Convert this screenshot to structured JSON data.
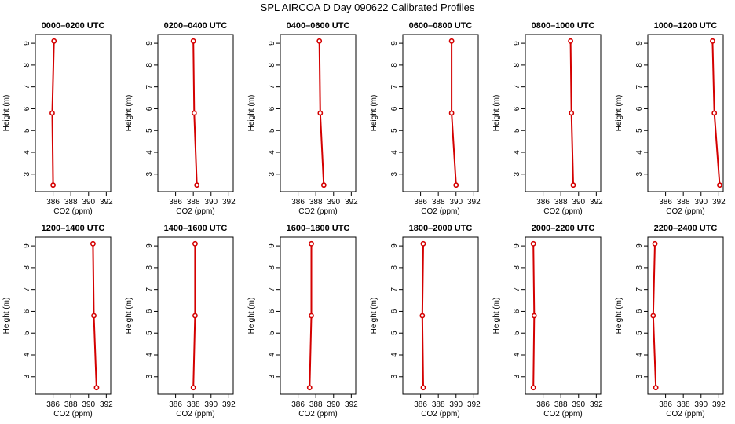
{
  "title": "SPL AIRCOA D  Day 090622  Calibrated Profiles",
  "colors": {
    "series": "#d40000",
    "axis": "#000000",
    "background": "#ffffff"
  },
  "chart_data": [
    {
      "type": "line",
      "title": "0000–0200 UTC",
      "xlabel": "CO2 (ppm)",
      "ylabel": "Height (m)",
      "xlim": [
        384,
        392.5
      ],
      "ylim": [
        2.2,
        9.4
      ],
      "xticks": [
        386,
        388,
        390,
        392
      ],
      "yticks": [
        3,
        4,
        5,
        6,
        7,
        8,
        9
      ],
      "x": [
        386.0,
        385.9,
        386.1
      ],
      "y": [
        2.5,
        5.8,
        9.1
      ]
    },
    {
      "type": "line",
      "title": "0200–0400 UTC",
      "xlabel": "CO2 (ppm)",
      "ylabel": "Height (m)",
      "xlim": [
        384,
        392.5
      ],
      "ylim": [
        2.2,
        9.4
      ],
      "xticks": [
        386,
        388,
        390,
        392
      ],
      "yticks": [
        3,
        4,
        5,
        6,
        7,
        8,
        9
      ],
      "x": [
        388.4,
        388.1,
        388.0
      ],
      "y": [
        2.5,
        5.8,
        9.1
      ]
    },
    {
      "type": "line",
      "title": "0400–0600 UTC",
      "xlabel": "CO2 (ppm)",
      "ylabel": "Height (m)",
      "xlim": [
        384,
        392.5
      ],
      "ylim": [
        2.2,
        9.4
      ],
      "xticks": [
        386,
        388,
        390,
        392
      ],
      "yticks": [
        3,
        4,
        5,
        6,
        7,
        8,
        9
      ],
      "x": [
        388.9,
        388.5,
        388.4
      ],
      "y": [
        2.5,
        5.8,
        9.1
      ]
    },
    {
      "type": "line",
      "title": "0600–0800 UTC",
      "xlabel": "CO2 (ppm)",
      "ylabel": "Height (m)",
      "xlim": [
        384,
        392.5
      ],
      "ylim": [
        2.2,
        9.4
      ],
      "xticks": [
        386,
        388,
        390,
        392
      ],
      "yticks": [
        3,
        4,
        5,
        6,
        7,
        8,
        9
      ],
      "x": [
        390.0,
        389.5,
        389.5
      ],
      "y": [
        2.5,
        5.8,
        9.1
      ]
    },
    {
      "type": "line",
      "title": "0800–1000 UTC",
      "xlabel": "CO2 (ppm)",
      "ylabel": "Height (m)",
      "xlim": [
        384,
        392.5
      ],
      "ylim": [
        2.2,
        9.4
      ],
      "xticks": [
        386,
        388,
        390,
        392
      ],
      "yticks": [
        3,
        4,
        5,
        6,
        7,
        8,
        9
      ],
      "x": [
        389.4,
        389.2,
        389.1
      ],
      "y": [
        2.5,
        5.8,
        9.1
      ]
    },
    {
      "type": "line",
      "title": "1000–1200 UTC",
      "xlabel": "CO2 (ppm)",
      "ylabel": "Height (m)",
      "xlim": [
        384,
        392.5
      ],
      "ylim": [
        2.2,
        9.4
      ],
      "xticks": [
        386,
        388,
        390,
        392
      ],
      "yticks": [
        3,
        4,
        5,
        6,
        7,
        8,
        9
      ],
      "x": [
        392.1,
        391.5,
        391.3
      ],
      "y": [
        2.5,
        5.8,
        9.1
      ]
    },
    {
      "type": "line",
      "title": "1200–1400 UTC",
      "xlabel": "CO2 (ppm)",
      "ylabel": "Height (m)",
      "xlim": [
        384,
        392.5
      ],
      "ylim": [
        2.2,
        9.4
      ],
      "xticks": [
        386,
        388,
        390,
        392
      ],
      "yticks": [
        3,
        4,
        5,
        6,
        7,
        8,
        9
      ],
      "x": [
        390.9,
        390.6,
        390.5
      ],
      "y": [
        2.5,
        5.8,
        9.1
      ]
    },
    {
      "type": "line",
      "title": "1400–1600 UTC",
      "xlabel": "CO2 (ppm)",
      "ylabel": "Height (m)",
      "xlim": [
        384,
        392.5
      ],
      "ylim": [
        2.2,
        9.4
      ],
      "xticks": [
        386,
        388,
        390,
        392
      ],
      "yticks": [
        3,
        4,
        5,
        6,
        7,
        8,
        9
      ],
      "x": [
        388.0,
        388.2,
        388.2
      ],
      "y": [
        2.5,
        5.8,
        9.1
      ]
    },
    {
      "type": "line",
      "title": "1600–1800 UTC",
      "xlabel": "CO2 (ppm)",
      "ylabel": "Height (m)",
      "xlim": [
        384,
        392.5
      ],
      "ylim": [
        2.2,
        9.4
      ],
      "xticks": [
        386,
        388,
        390,
        392
      ],
      "yticks": [
        3,
        4,
        5,
        6,
        7,
        8,
        9
      ],
      "x": [
        387.3,
        387.5,
        387.5
      ],
      "y": [
        2.5,
        5.8,
        9.1
      ]
    },
    {
      "type": "line",
      "title": "1800–2000 UTC",
      "xlabel": "CO2 (ppm)",
      "ylabel": "Height (m)",
      "xlim": [
        384,
        392.5
      ],
      "ylim": [
        2.2,
        9.4
      ],
      "xticks": [
        386,
        388,
        390,
        392
      ],
      "yticks": [
        3,
        4,
        5,
        6,
        7,
        8,
        9
      ],
      "x": [
        386.3,
        386.2,
        386.3
      ],
      "y": [
        2.5,
        5.8,
        9.1
      ]
    },
    {
      "type": "line",
      "title": "2000–2200 UTC",
      "xlabel": "CO2 (ppm)",
      "ylabel": "Height (m)",
      "xlim": [
        384,
        392.5
      ],
      "ylim": [
        2.2,
        9.4
      ],
      "xticks": [
        386,
        388,
        390,
        392
      ],
      "yticks": [
        3,
        4,
        5,
        6,
        7,
        8,
        9
      ],
      "x": [
        384.9,
        385.0,
        384.9
      ],
      "y": [
        2.5,
        5.8,
        9.1
      ]
    },
    {
      "type": "line",
      "title": "2200–2400 UTC",
      "xlabel": "CO2 (ppm)",
      "ylabel": "Height (m)",
      "xlim": [
        384,
        392.5
      ],
      "ylim": [
        2.2,
        9.4
      ],
      "xticks": [
        386,
        388,
        390,
        392
      ],
      "yticks": [
        3,
        4,
        5,
        6,
        7,
        8,
        9
      ],
      "x": [
        384.9,
        384.6,
        384.8
      ],
      "y": [
        2.5,
        5.8,
        9.1
      ]
    }
  ]
}
